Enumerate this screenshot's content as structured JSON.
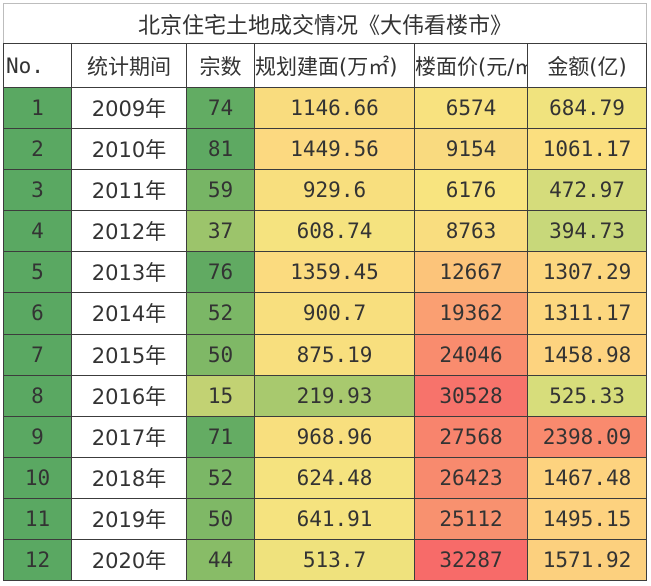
{
  "title": "北京住宅土地成交情况《大伟看楼市》",
  "headers": [
    "No.",
    "统计期间",
    "宗数",
    "规划建面(万㎡)",
    "楼面价(元/㎡)",
    "金额(亿)"
  ],
  "rows": [
    {
      "no": "1",
      "period": "2009年",
      "count": "74",
      "area": "1146.66",
      "price": "6574",
      "amount": "684.79"
    },
    {
      "no": "2",
      "period": "2010年",
      "count": "81",
      "area": "1449.56",
      "price": "9154",
      "amount": "1061.17"
    },
    {
      "no": "3",
      "period": "2011年",
      "count": "59",
      "area": "929.6",
      "price": "6176",
      "amount": "472.97"
    },
    {
      "no": "4",
      "period": "2012年",
      "count": "37",
      "area": "608.74",
      "price": "8763",
      "amount": "394.73"
    },
    {
      "no": "5",
      "period": "2013年",
      "count": "76",
      "area": "1359.45",
      "price": "12667",
      "amount": "1307.29"
    },
    {
      "no": "6",
      "period": "2014年",
      "count": "52",
      "area": "900.7",
      "price": "19362",
      "amount": "1311.17"
    },
    {
      "no": "7",
      "period": "2015年",
      "count": "50",
      "area": "875.19",
      "price": "24046",
      "amount": "1458.98"
    },
    {
      "no": "8",
      "period": "2016年",
      "count": "15",
      "area": "219.93",
      "price": "30528",
      "amount": "525.33"
    },
    {
      "no": "9",
      "period": "2017年",
      "count": "71",
      "area": "968.96",
      "price": "27568",
      "amount": "2398.09"
    },
    {
      "no": "10",
      "period": "2018年",
      "count": "52",
      "area": "624.48",
      "price": "26423",
      "amount": "1467.48"
    },
    {
      "no": "11",
      "period": "2019年",
      "count": "50",
      "area": "641.91",
      "price": "25112",
      "amount": "1495.15"
    },
    {
      "no": "12",
      "period": "2020年",
      "count": "44",
      "area": "513.7",
      "price": "32287",
      "amount": "1571.92"
    }
  ],
  "colors": {
    "no": [
      "#5aa862",
      "#5aa862",
      "#5aa862",
      "#5aa862",
      "#5aa862",
      "#5aa862",
      "#5aa862",
      "#5aa862",
      "#5aa862",
      "#5aa862",
      "#5aa862",
      "#5aa862"
    ],
    "count": [
      "#62ac63",
      "#5ea962",
      "#77b565",
      "#9cc46b",
      "#61aa62",
      "#7bb766",
      "#7fb866",
      "#c2d273",
      "#64ac63",
      "#7bb766",
      "#7fb866",
      "#88bc67"
    ],
    "area": [
      "#f9dc7e",
      "#fcd980",
      "#f8df7e",
      "#f5e37f",
      "#fbdb7f",
      "#f8df7e",
      "#f8df7e",
      "#a8c96e",
      "#f8df7e",
      "#f5e37f",
      "#f5e37f",
      "#efe27d"
    ],
    "price": [
      "#f8e27f",
      "#f9da7f",
      "#f8e47f",
      "#f9dd7f",
      "#fcc47a",
      "#fa9f72",
      "#f98c6e",
      "#f7736b",
      "#f8846d",
      "#f88a6e",
      "#f8916f",
      "#f76b69"
    ],
    "amount": [
      "#f0e37e",
      "#fbdf7f",
      "#d5dc7b",
      "#c8d87a",
      "#fcd77f",
      "#fcd77f",
      "#fdd37f",
      "#d7dd7b",
      "#f98a6e",
      "#fdd37f",
      "#fdd27f",
      "#fcd07e"
    ]
  }
}
